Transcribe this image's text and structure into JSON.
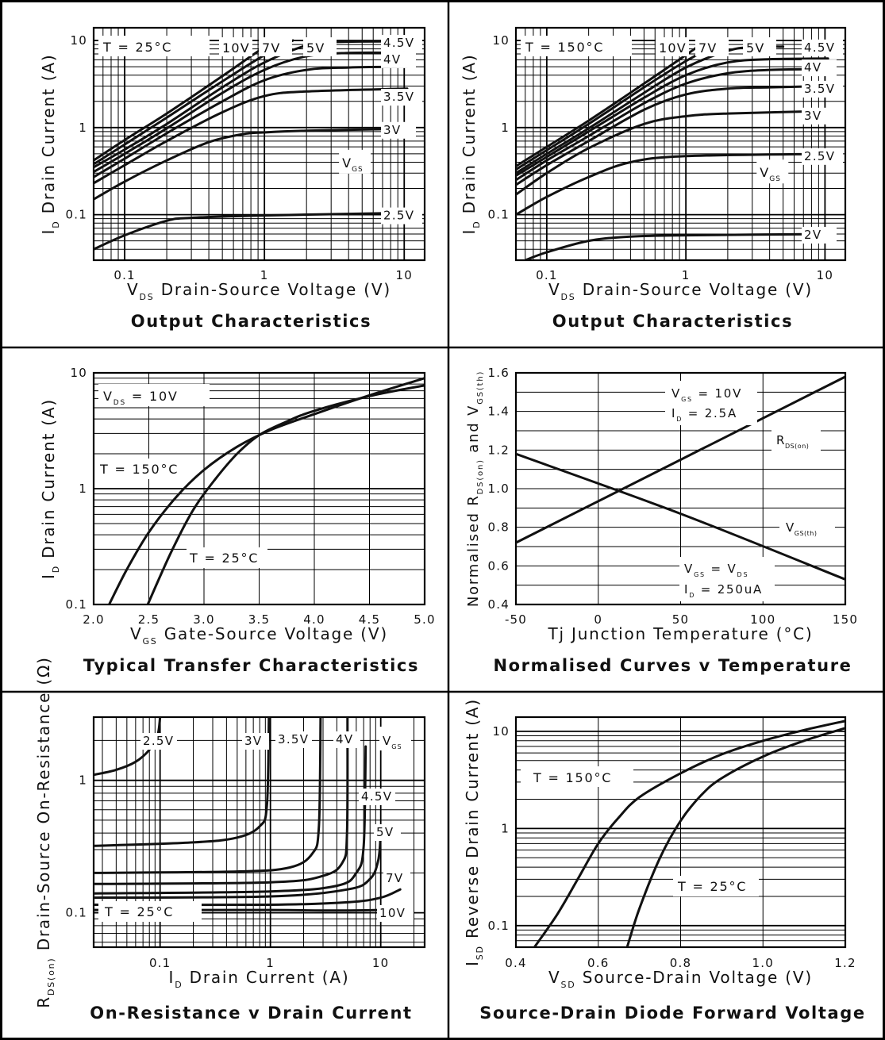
{
  "chart_data": [
    {
      "type": "line",
      "title": "Output Characteristics",
      "x_axis": {
        "symbol": "V",
        "sub": "DS",
        "label": "Drain-Source Voltage (V)",
        "scale": "log",
        "range": [
          0.06,
          14
        ],
        "ticks": [
          "0.1",
          "1",
          "10"
        ]
      },
      "y_axis": {
        "symbol": "I",
        "sub": "D",
        "label": "Drain Current (A)",
        "scale": "log",
        "range": [
          0.03,
          14
        ],
        "ticks": [
          "0.1",
          "1",
          "10"
        ]
      },
      "condition": "T = 25°C",
      "legend_label": {
        "symbol": "V",
        "sub": "GS"
      },
      "series": [
        {
          "name": "10V",
          "x": [
            0.06,
            0.1,
            0.2,
            0.5,
            0.9,
            1.2
          ],
          "y": [
            0.42,
            0.72,
            1.45,
            3.9,
            7.5,
            10
          ]
        },
        {
          "name": "7V",
          "x": [
            0.06,
            0.1,
            0.2,
            0.5,
            1.0,
            1.6
          ],
          "y": [
            0.38,
            0.64,
            1.3,
            3.4,
            6.8,
            10
          ]
        },
        {
          "name": "5V",
          "x": [
            0.06,
            0.1,
            0.2,
            0.5,
            1.0,
            2.0,
            3.0,
            10.5
          ],
          "y": [
            0.35,
            0.56,
            1.1,
            2.9,
            5.6,
            8.8,
            9.6,
            9.8
          ]
        },
        {
          "name": "4.5V",
          "x": [
            0.06,
            0.1,
            0.2,
            0.5,
            1.0,
            2.0,
            4.0,
            10.5
          ],
          "y": [
            0.31,
            0.5,
            0.98,
            2.5,
            4.6,
            6.6,
            7.2,
            7.2
          ]
        },
        {
          "name": "4V",
          "x": [
            0.06,
            0.1,
            0.2,
            0.5,
            1.0,
            2.0,
            4.0,
            10.5
          ],
          "y": [
            0.27,
            0.44,
            0.86,
            2.0,
            3.5,
            4.6,
            4.9,
            5.0
          ]
        },
        {
          "name": "3.5V",
          "x": [
            0.06,
            0.1,
            0.2,
            0.5,
            1.0,
            2.0,
            10.5
          ],
          "y": [
            0.23,
            0.37,
            0.7,
            1.5,
            2.3,
            2.6,
            2.8
          ]
        },
        {
          "name": "3V",
          "x": [
            0.06,
            0.1,
            0.2,
            0.4,
            0.7,
            1.0,
            2.0,
            10.5
          ],
          "y": [
            0.15,
            0.24,
            0.42,
            0.68,
            0.84,
            0.88,
            0.92,
            0.97
          ]
        },
        {
          "name": "2.5V",
          "x": [
            0.06,
            0.1,
            0.2,
            0.3,
            1.0,
            10.5
          ],
          "y": [
            0.04,
            0.058,
            0.085,
            0.092,
            0.098,
            0.105
          ]
        }
      ]
    },
    {
      "type": "line",
      "title": "Output Characteristics",
      "x_axis": {
        "symbol": "V",
        "sub": "DS",
        "label": "Drain-Source Voltage (V)",
        "scale": "log",
        "range": [
          0.06,
          14
        ],
        "ticks": [
          "0.1",
          "1",
          "10"
        ]
      },
      "y_axis": {
        "symbol": "I",
        "sub": "D",
        "label": "Drain Current (A)",
        "scale": "log",
        "range": [
          0.03,
          14
        ],
        "ticks": [
          "0.1",
          "1",
          "10"
        ]
      },
      "condition": "T = 150°C",
      "legend_label": {
        "symbol": "V",
        "sub": "GS"
      },
      "series": [
        {
          "name": "10V",
          "x": [
            0.06,
            0.1,
            0.2,
            0.5,
            1.0,
            1.4
          ],
          "y": [
            0.36,
            0.6,
            1.2,
            3.2,
            6.8,
            10
          ]
        },
        {
          "name": "7V",
          "x": [
            0.06,
            0.1,
            0.2,
            0.5,
            1.0,
            1.9
          ],
          "y": [
            0.33,
            0.55,
            1.1,
            2.9,
            5.8,
            10
          ]
        },
        {
          "name": "5V",
          "x": [
            0.06,
            0.1,
            0.2,
            0.5,
            1.0,
            2.0,
            3.0,
            5.0
          ],
          "y": [
            0.3,
            0.5,
            0.98,
            2.5,
            4.9,
            7.6,
            8.4,
            8.5
          ]
        },
        {
          "name": "4.5V",
          "x": [
            0.06,
            0.1,
            0.2,
            0.5,
            1.0,
            2.0,
            4.0,
            10.5
          ],
          "y": [
            0.28,
            0.46,
            0.9,
            2.2,
            4.0,
            5.6,
            6.1,
            6.2
          ]
        },
        {
          "name": "4V",
          "x": [
            0.06,
            0.1,
            0.2,
            0.5,
            1.0,
            2.0,
            4.0,
            10.5
          ],
          "y": [
            0.25,
            0.42,
            0.8,
            1.9,
            3.2,
            4.2,
            4.6,
            4.7
          ]
        },
        {
          "name": "3.5V",
          "x": [
            0.06,
            0.1,
            0.2,
            0.5,
            1.0,
            2.0,
            4.0,
            10.5
          ],
          "y": [
            0.22,
            0.37,
            0.7,
            1.6,
            2.4,
            2.8,
            2.9,
            3.0
          ]
        },
        {
          "name": "3V",
          "x": [
            0.06,
            0.1,
            0.2,
            0.5,
            1.0,
            2.0,
            10.5
          ],
          "y": [
            0.17,
            0.3,
            0.58,
            1.1,
            1.35,
            1.45,
            1.55
          ]
        },
        {
          "name": "2.5V",
          "x": [
            0.06,
            0.1,
            0.2,
            0.4,
            1.0,
            10.5
          ],
          "y": [
            0.1,
            0.16,
            0.27,
            0.4,
            0.47,
            0.5
          ]
        },
        {
          "name": "2V",
          "x": [
            0.07,
            0.1,
            0.2,
            0.4,
            1.0,
            10.5
          ],
          "y": [
            0.03,
            0.037,
            0.05,
            0.056,
            0.058,
            0.06
          ]
        }
      ]
    },
    {
      "type": "line",
      "title": "Typical Transfer Characteristics",
      "x_axis": {
        "symbol": "V",
        "sub": "GS",
        "label": "Gate-Source Voltage (V)",
        "scale": "linear",
        "range": [
          2.0,
          5.0
        ],
        "ticks": [
          "2.0",
          "2.5",
          "3.0",
          "3.5",
          "4.0",
          "4.5",
          "5.0"
        ]
      },
      "y_axis": {
        "symbol": "I",
        "sub": "D",
        "label": "Drain Current (A)",
        "scale": "log",
        "range": [
          0.1,
          10
        ],
        "ticks": [
          "0.1",
          "1",
          "10"
        ]
      },
      "condition": {
        "symbol": "V",
        "sub": "DS",
        "text": "= 10V"
      },
      "series": [
        {
          "name": "T = 150°C",
          "x": [
            2.14,
            2.3,
            2.5,
            2.75,
            3.0,
            3.3,
            3.6,
            4.0,
            4.5,
            5.0
          ],
          "y": [
            0.1,
            0.2,
            0.42,
            0.85,
            1.45,
            2.3,
            3.2,
            4.4,
            6.4,
            9.0
          ]
        },
        {
          "name": "T = 25°C",
          "x": [
            2.49,
            2.7,
            2.9,
            3.1,
            3.3,
            3.5,
            3.75,
            4.0,
            4.5,
            5.0
          ],
          "y": [
            0.1,
            0.28,
            0.65,
            1.2,
            2.0,
            2.9,
            3.8,
            4.7,
            6.3,
            7.8
          ]
        }
      ]
    },
    {
      "type": "line",
      "title": "Normalised Curves v Temperature",
      "x_axis": {
        "label": "Tj  Junction Temperature (°C)",
        "scale": "linear",
        "range": [
          -50,
          150
        ],
        "ticks": [
          "-50",
          "0",
          "50",
          "100",
          "150"
        ]
      },
      "y_axis": {
        "label_parts": [
          "Normalised R",
          "DS(on)",
          " and V",
          "GS(th)"
        ],
        "scale": "linear",
        "range": [
          0.4,
          1.6
        ],
        "ticks": [
          "0.4",
          "0.6",
          "0.8",
          "1.0",
          "1.2",
          "1.4",
          "1.6"
        ]
      },
      "series": [
        {
          "name": "R_DS(on)",
          "label": {
            "symbol": "R",
            "sub": "DS(on)"
          },
          "conditions": [
            {
              "symbol": "V",
              "sub": "GS",
              "text": "= 10V"
            },
            {
              "symbol": "I",
              "sub": "D",
              "text": "= 2.5A"
            }
          ],
          "x": [
            -50,
            150
          ],
          "y": [
            0.72,
            1.58
          ]
        },
        {
          "name": "V_GS(th)",
          "label": {
            "symbol": "V",
            "sub": "GS(th)"
          },
          "conditions": [
            {
              "symbol": "V",
              "sub": "GS",
              "text": "= V",
              "tail_sub": "DS"
            },
            {
              "symbol": "I",
              "sub": "D",
              "text": "= 250uA"
            }
          ],
          "x": [
            -50,
            50,
            150
          ],
          "y": [
            1.18,
            0.87,
            0.53
          ]
        }
      ]
    },
    {
      "type": "line",
      "title": "On-Resistance v Drain Current",
      "x_axis": {
        "symbol": "I",
        "sub": "D",
        "label": "Drain Current (A)",
        "scale": "log",
        "range": [
          0.025,
          25
        ],
        "ticks": [
          "0.1",
          "1",
          "10"
        ]
      },
      "y_axis": {
        "symbol": "R",
        "sub": "DS(on)",
        "label": "Drain-Source On-Resistance (Ω)",
        "scale": "log",
        "range": [
          0.055,
          3
        ],
        "ticks": [
          "0.1",
          "1"
        ]
      },
      "condition": "T = 25°C",
      "legend_label": {
        "symbol": "V",
        "sub": "GS"
      },
      "series": [
        {
          "name": "2.5V",
          "x": [
            0.025,
            0.04,
            0.06,
            0.08,
            0.095,
            0.1
          ],
          "y": [
            1.1,
            1.2,
            1.38,
            1.7,
            2.2,
            3.0
          ]
        },
        {
          "name": "3V",
          "x": [
            0.025,
            0.2,
            0.5,
            0.8,
            0.93,
            0.97
          ],
          "y": [
            0.32,
            0.34,
            0.37,
            0.45,
            0.65,
            3.0
          ]
        },
        {
          "name": "3.5V",
          "x": [
            0.025,
            0.5,
            1.5,
            2.4,
            2.75,
            2.85
          ],
          "y": [
            0.2,
            0.205,
            0.22,
            0.28,
            0.45,
            3.0
          ]
        },
        {
          "name": "4V",
          "x": [
            0.025,
            1.0,
            3.0,
            4.5,
            4.95,
            5.0
          ],
          "y": [
            0.165,
            0.17,
            0.19,
            0.24,
            0.4,
            3.0
          ]
        },
        {
          "name": "4.5V",
          "x": [
            0.025,
            1.0,
            4.0,
            6.0,
            7.0,
            7.3
          ],
          "y": [
            0.14,
            0.145,
            0.16,
            0.2,
            0.32,
            1.8
          ]
        },
        {
          "name": "5V",
          "x": [
            0.025,
            1.0,
            5.0,
            8.0,
            9.5,
            10.0
          ],
          "y": [
            0.13,
            0.133,
            0.15,
            0.18,
            0.25,
            0.4
          ]
        },
        {
          "name": "7V",
          "x": [
            0.025,
            1.0,
            5.0,
            10.0,
            15.0
          ],
          "y": [
            0.115,
            0.115,
            0.12,
            0.13,
            0.15
          ]
        },
        {
          "name": "10V",
          "x": [
            0.025,
            1.0,
            3.0,
            10.0,
            15.0
          ],
          "y": [
            0.105,
            0.105,
            0.104,
            0.105,
            0.108
          ]
        }
      ]
    },
    {
      "type": "line",
      "title": "Source-Drain Diode Forward Voltage",
      "x_axis": {
        "symbol": "V",
        "sub": "SD",
        "label": "Source-Drain Voltage (V)",
        "scale": "linear",
        "range": [
          0.4,
          1.2
        ],
        "ticks": [
          "0.4",
          "0.6",
          "0.8",
          "1.0",
          "1.2"
        ]
      },
      "y_axis": {
        "symbol": "I",
        "sub": "SD",
        "label": "Reverse Drain Current (A)",
        "scale": "log",
        "range": [
          0.06,
          14
        ],
        "ticks": [
          "0.1",
          "1",
          "10"
        ]
      },
      "series": [
        {
          "name": "T = 150°C",
          "x": [
            0.445,
            0.5,
            0.55,
            0.6,
            0.65,
            0.7,
            0.8,
            0.9,
            1.0,
            1.1,
            1.2
          ],
          "y": [
            0.06,
            0.13,
            0.3,
            0.7,
            1.3,
            2.1,
            3.7,
            5.8,
            8.0,
            10.3,
            12.8
          ]
        },
        {
          "name": "T = 25°C",
          "x": [
            0.67,
            0.7,
            0.75,
            0.8,
            0.85,
            0.9,
            1.0,
            1.1,
            1.2
          ],
          "y": [
            0.06,
            0.15,
            0.5,
            1.2,
            2.2,
            3.3,
            5.5,
            8.0,
            10.8
          ]
        }
      ]
    }
  ]
}
